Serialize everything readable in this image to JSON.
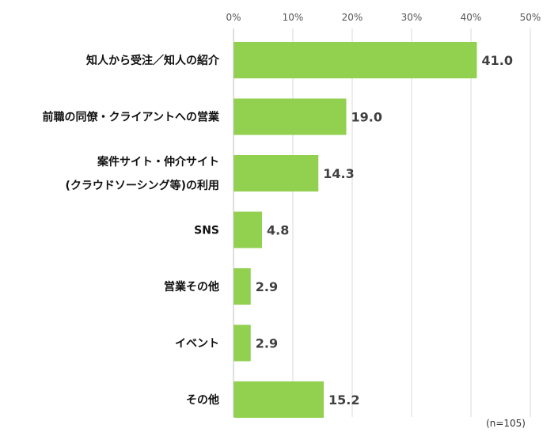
{
  "chart_data": {
    "type": "bar",
    "orientation": "horizontal",
    "title": "",
    "xlabel": "",
    "ylabel": "",
    "xlim": [
      0,
      50
    ],
    "tick_labels": [
      "0%",
      "10%",
      "20%",
      "30%",
      "40%",
      "50%"
    ],
    "categories": [
      [
        "知人から受注／知人の紹介"
      ],
      [
        "前職の同僚・クライアントへの営業"
      ],
      [
        "案件サイト・仲介サイト",
        "(クラウドソーシング等)の利用"
      ],
      [
        "SNS"
      ],
      [
        "営業その他"
      ],
      [
        "イベント"
      ],
      [
        "その他"
      ]
    ],
    "values": [
      41.0,
      19.0,
      14.3,
      4.8,
      2.9,
      2.9,
      15.2
    ],
    "value_labels": [
      "41.0",
      "19.0",
      "14.3",
      "4.8",
      "2.9",
      "2.9",
      "15.2"
    ],
    "grid": true,
    "bar_color": "#92d050",
    "grid_color": "#d9d9d9",
    "note": "(n=105)"
  }
}
